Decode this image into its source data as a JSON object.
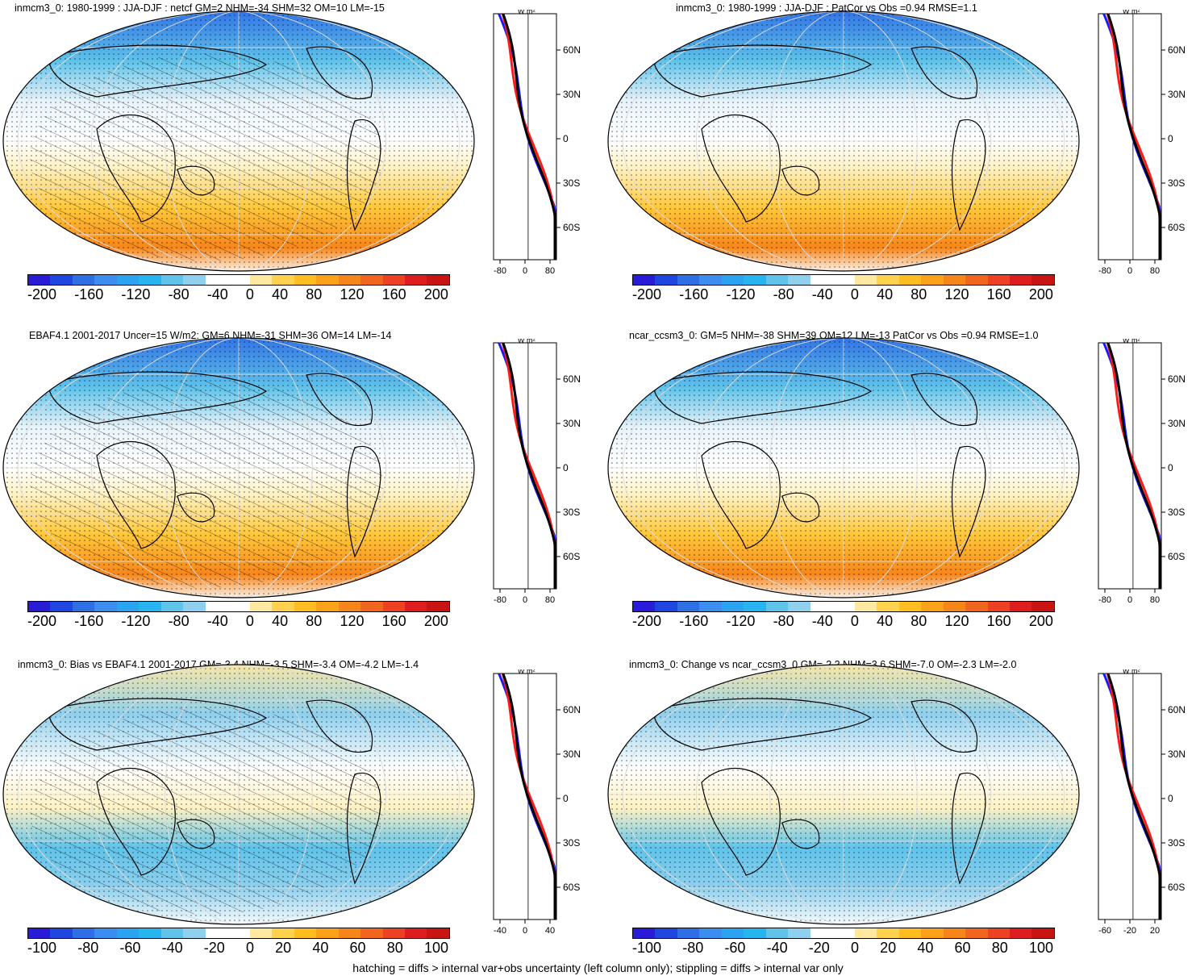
{
  "footer_note": "hatching = diffs > internal var+obs uncertainty (left column only); stippling = diffs > internal var only",
  "profile_unit": "W m²",
  "lat_ticks": [
    "60N",
    "30N",
    "0",
    "30S",
    "60S"
  ],
  "colors": {
    "scale_main": [
      "#2a1bd6",
      "#2046e0",
      "#2f6fe6",
      "#3b8ef0",
      "#2aa3f0",
      "#26b5ee",
      "#5fc3ea",
      "#8fd0ee",
      "#ffffff",
      "#ffffff",
      "#ffe9a0",
      "#ffd24d",
      "#ffbd1f",
      "#fba21a",
      "#f7861a",
      "#f2651f",
      "#ec4122",
      "#de1e1e",
      "#c91414"
    ],
    "line_model": "#ff1a1a",
    "line_obs": "#1a1aff",
    "line_ref": "#000000"
  },
  "panels": [
    {
      "title": "inmcm3_0: 1980-1999 : JJA-DJF : netcf GM=2 NHM=-34 SHM=32 OM=10 LM=-15",
      "cbar_labels": [
        "-200",
        "-160",
        "-120",
        "-80",
        "-40",
        "0",
        "40",
        "80",
        "120",
        "160",
        "200"
      ],
      "profile_xticks": [
        "-80",
        "0",
        "80"
      ]
    },
    {
      "title": "inmcm3_0: 1980-1999 : JJA-DJF : PatCor vs Obs =0.94 RMSE=1.1",
      "cbar_labels": [
        "-200",
        "-160",
        "-120",
        "-80",
        "-40",
        "0",
        "40",
        "80",
        "120",
        "160",
        "200"
      ],
      "profile_xticks": [
        "-80",
        "0",
        "80"
      ]
    },
    {
      "title": "EBAF4.1 2001-2017 Uncer=15 W/m2: GM=6 NHM=-31 SHM=36 OM=14 LM=-14",
      "cbar_labels": [
        "-200",
        "-160",
        "-120",
        "-80",
        "-40",
        "0",
        "40",
        "80",
        "120",
        "160",
        "200"
      ],
      "profile_xticks": [
        "-80",
        "0",
        "80"
      ]
    },
    {
      "title": "ncar_ccsm3_0: GM=5 NHM=-38 SHM=39 OM=12 LM=-13 PatCor vs Obs =0.94 RMSE=1.0",
      "cbar_labels": [
        "-200",
        "-160",
        "-120",
        "-80",
        "-40",
        "0",
        "40",
        "80",
        "120",
        "160",
        "200"
      ],
      "profile_xticks": [
        "-80",
        "0",
        "80"
      ]
    },
    {
      "title": "inmcm3_0: Bias vs EBAF4.1 2001-2017 GM=-3.4 NHM=-3.5 SHM=-3.4 OM=-4.2 LM=-1.4",
      "cbar_labels": [
        "-100",
        "-80",
        "-60",
        "-40",
        "-20",
        "0",
        "20",
        "40",
        "60",
        "80",
        "100"
      ],
      "profile_xticks": [
        "-40",
        "0",
        "40"
      ]
    },
    {
      "title": "inmcm3_0: Change vs ncar_ccsm3_0 GM=-2.2 NHM=3.6 SHM=-7.0 OM=-2.3 LM=-2.0",
      "cbar_labels": [
        "-100",
        "-80",
        "-60",
        "-40",
        "-20",
        "0",
        "20",
        "40",
        "60",
        "80",
        "100"
      ],
      "profile_xticks": [
        "-60",
        "-20",
        "20"
      ]
    }
  ]
}
